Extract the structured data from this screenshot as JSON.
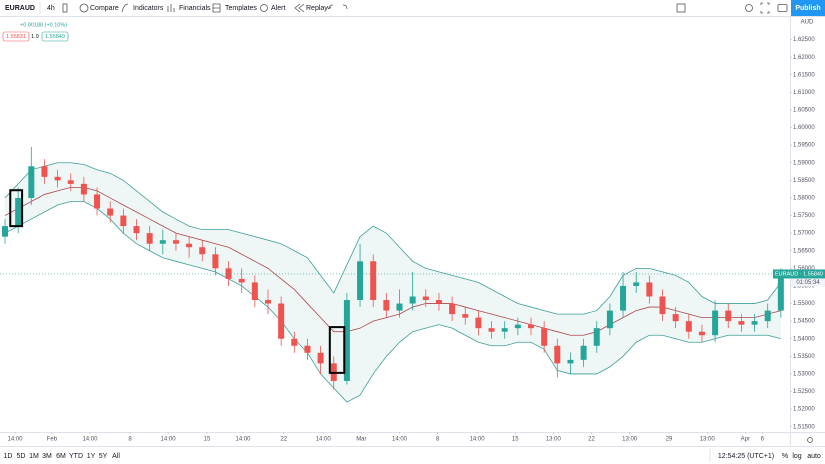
{
  "toolbar": {
    "symbol": "EURAUD",
    "interval": "4h",
    "items": [
      "Compare",
      "Indicators",
      "Financials",
      "Templates",
      "Alert",
      "Replay"
    ],
    "publish": "Publish"
  },
  "legend": {
    "change": "+0.00188 (+0.10%)",
    "bid": "1.55831",
    "spread": "1.9",
    "ask": "1.55849"
  },
  "chart_data": {
    "type": "candlestick",
    "currency": "AUD",
    "open": [
      1.569,
      1.572,
      1.58,
      1.589,
      1.586,
      1.585,
      1.584,
      1.581,
      1.577,
      1.575,
      1.572,
      1.57,
      1.567,
      1.568,
      1.567,
      1.566,
      1.564,
      1.56,
      1.557,
      1.556,
      1.551,
      1.55,
      1.54,
      1.538,
      1.536,
      1.533,
      1.528,
      1.551,
      1.562,
      1.551,
      1.548,
      1.55,
      1.552,
      1.551,
      1.55,
      1.547,
      1.546,
      1.543,
      1.542,
      1.543,
      1.544,
      1.543,
      1.538,
      1.533,
      1.534,
      1.538,
      1.543,
      1.548,
      1.555,
      1.556,
      1.552,
      1.547,
      1.545,
      1.542,
      1.541,
      1.548,
      1.545,
      1.544,
      1.545,
      1.548
    ],
    "high": [
      1.574,
      1.583,
      1.5945,
      1.591,
      1.588,
      1.587,
      1.586,
      1.583,
      1.579,
      1.577,
      1.574,
      1.572,
      1.571,
      1.57,
      1.569,
      1.568,
      1.566,
      1.562,
      1.56,
      1.558,
      1.554,
      1.552,
      1.542,
      1.54,
      1.538,
      1.535,
      1.553,
      1.567,
      1.564,
      1.553,
      1.554,
      1.559,
      1.554,
      1.553,
      1.552,
      1.549,
      1.548,
      1.545,
      1.545,
      1.546,
      1.546,
      1.545,
      1.54,
      1.536,
      1.54,
      1.545,
      1.55,
      1.559,
      1.559,
      1.558,
      1.554,
      1.549,
      1.547,
      1.544,
      1.551,
      1.55,
      1.547,
      1.547,
      1.55,
      1.56
    ],
    "low": [
      1.567,
      1.57,
      1.578,
      1.584,
      1.583,
      1.582,
      1.579,
      1.575,
      1.573,
      1.57,
      1.568,
      1.565,
      1.564,
      1.565,
      1.563,
      1.562,
      1.558,
      1.555,
      1.553,
      1.549,
      1.547,
      1.538,
      1.536,
      1.534,
      1.53,
      1.5255,
      1.527,
      1.549,
      1.549,
      1.546,
      1.546,
      1.548,
      1.549,
      1.548,
      1.545,
      1.544,
      1.541,
      1.54,
      1.54,
      1.541,
      1.541,
      1.536,
      1.529,
      1.53,
      1.532,
      1.536,
      1.541,
      1.546,
      1.553,
      1.55,
      1.545,
      1.543,
      1.54,
      1.539,
      1.539,
      1.543,
      1.542,
      1.542,
      1.543,
      1.546
    ],
    "close": [
      1.572,
      1.58,
      1.589,
      1.586,
      1.585,
      1.584,
      1.581,
      1.577,
      1.575,
      1.572,
      1.57,
      1.567,
      1.568,
      1.567,
      1.566,
      1.564,
      1.56,
      1.557,
      1.556,
      1.551,
      1.55,
      1.54,
      1.538,
      1.536,
      1.533,
      1.528,
      1.551,
      1.562,
      1.551,
      1.548,
      1.55,
      1.552,
      1.551,
      1.55,
      1.547,
      1.546,
      1.543,
      1.542,
      1.543,
      1.544,
      1.543,
      1.538,
      1.533,
      1.534,
      1.538,
      1.543,
      1.548,
      1.555,
      1.556,
      1.552,
      1.547,
      1.545,
      1.542,
      1.541,
      1.548,
      1.545,
      1.544,
      1.545,
      1.548,
      1.5584
    ],
    "up_color": "#26a69a",
    "down_color": "#ef5350",
    "bollinger": {
      "upper": [
        1.58,
        1.584,
        1.588,
        1.589,
        1.59,
        1.59,
        1.5895,
        1.588,
        1.587,
        1.585,
        1.582,
        1.579,
        1.576,
        1.574,
        1.572,
        1.571,
        1.571,
        1.571,
        1.57,
        1.569,
        1.568,
        1.567,
        1.565,
        1.563,
        1.558,
        1.553,
        1.561,
        1.569,
        1.572,
        1.57,
        1.566,
        1.562,
        1.56,
        1.559,
        1.558,
        1.557,
        1.556,
        1.554,
        1.552,
        1.55,
        1.549,
        1.548,
        1.547,
        1.547,
        1.547,
        1.548,
        1.552,
        1.558,
        1.56,
        1.56,
        1.559,
        1.558,
        1.556,
        1.552,
        1.55,
        1.55,
        1.55,
        1.55,
        1.551,
        1.556
      ],
      "middle": [
        1.575,
        1.577,
        1.579,
        1.581,
        1.582,
        1.583,
        1.583,
        1.582,
        1.58,
        1.578,
        1.576,
        1.574,
        1.572,
        1.57,
        1.569,
        1.568,
        1.567,
        1.566,
        1.564,
        1.562,
        1.56,
        1.557,
        1.554,
        1.55,
        1.546,
        1.542,
        1.542,
        1.543,
        1.545,
        1.546,
        1.547,
        1.549,
        1.55,
        1.55,
        1.55,
        1.549,
        1.548,
        1.547,
        1.546,
        1.545,
        1.544,
        1.543,
        1.542,
        1.541,
        1.541,
        1.542,
        1.544,
        1.546,
        1.548,
        1.549,
        1.549,
        1.548,
        1.547,
        1.546,
        1.546,
        1.546,
        1.546,
        1.546,
        1.547,
        1.548
      ],
      "lower": [
        1.57,
        1.572,
        1.574,
        1.576,
        1.578,
        1.579,
        1.579,
        1.577,
        1.574,
        1.57,
        1.567,
        1.565,
        1.563,
        1.562,
        1.561,
        1.56,
        1.559,
        1.557,
        1.555,
        1.552,
        1.549,
        1.545,
        1.54,
        1.536,
        1.53,
        1.526,
        1.522,
        1.524,
        1.53,
        1.535,
        1.539,
        1.542,
        1.543,
        1.544,
        1.543,
        1.541,
        1.539,
        1.538,
        1.538,
        1.539,
        1.539,
        1.537,
        1.531,
        1.53,
        1.53,
        1.53,
        1.532,
        1.535,
        1.539,
        1.541,
        1.541,
        1.54,
        1.539,
        1.539,
        1.54,
        1.541,
        1.541,
        1.541,
        1.541,
        1.54
      ],
      "band_color": "#3f9e9a",
      "basis_color": "#b0464b",
      "fill": "#eef7f6"
    },
    "highlight_boxes": [
      {
        "x": [
          0.4,
          1.3
        ],
        "y": [
          1.572,
          1.5822
        ]
      },
      {
        "x": [
          24.7,
          25.8
        ],
        "y": [
          1.5303,
          1.5433
        ]
      }
    ],
    "last_price": 1.5584,
    "last_price_label": "EURAUD · 1.55840",
    "countdown": "01:05:34",
    "ylim": [
      1.5135,
      1.6317
    ],
    "yticks": [
      {
        "value": 1.515,
        "label": "1.51500"
      },
      {
        "value": 1.52,
        "label": "1.52000"
      },
      {
        "value": 1.525,
        "label": "1.52500"
      },
      {
        "value": 1.53,
        "label": "1.53000"
      },
      {
        "value": 1.535,
        "label": "1.53500"
      },
      {
        "value": 1.54,
        "label": "1.54000"
      },
      {
        "value": 1.545,
        "label": "1.54500"
      },
      {
        "value": 1.55,
        "label": "1.55000"
      },
      {
        "value": 1.555,
        "label": "1.55500"
      },
      {
        "value": 1.56,
        "label": "1.56000"
      },
      {
        "value": 1.565,
        "label": "1.56500"
      },
      {
        "value": 1.57,
        "label": "1.57000"
      },
      {
        "value": 1.575,
        "label": "1.57500"
      },
      {
        "value": 1.58,
        "label": "1.58000"
      },
      {
        "value": 1.585,
        "label": "1.58500"
      },
      {
        "value": 1.59,
        "label": "1.59000"
      },
      {
        "value": 1.595,
        "label": "1.59500"
      },
      {
        "value": 1.6,
        "label": "1.60000"
      },
      {
        "value": 1.605,
        "label": "1.60500"
      },
      {
        "value": 1.61,
        "label": "1.61000"
      },
      {
        "value": 1.615,
        "label": "1.61500"
      },
      {
        "value": 1.62,
        "label": "1.62000"
      },
      {
        "value": 1.625,
        "label": "1.62500"
      }
    ],
    "xticks": [
      {
        "value": 0.76,
        "label": "14:00"
      },
      {
        "value": 3.57,
        "label": "Feb"
      },
      {
        "value": 6.46,
        "label": "14:00"
      },
      {
        "value": 9.51,
        "label": "8"
      },
      {
        "value": 12.4,
        "label": "14:00"
      },
      {
        "value": 15.36,
        "label": "15"
      },
      {
        "value": 18.1,
        "label": "14:00"
      },
      {
        "value": 21.2,
        "label": "22"
      },
      {
        "value": 24.2,
        "label": "14:00"
      },
      {
        "value": 27.1,
        "label": "Mar"
      },
      {
        "value": 30.0,
        "label": "14:00"
      },
      {
        "value": 32.9,
        "label": "8"
      },
      {
        "value": 35.9,
        "label": "14:00"
      },
      {
        "value": 38.8,
        "label": "15"
      },
      {
        "value": 41.7,
        "label": "13:00"
      },
      {
        "value": 44.6,
        "label": "22"
      },
      {
        "value": 47.5,
        "label": "13:00"
      },
      {
        "value": 50.5,
        "label": "29"
      },
      {
        "value": 53.4,
        "label": "13:00"
      },
      {
        "value": 56.3,
        "label": "Apr"
      },
      {
        "value": 57.6,
        "label": "6"
      }
    ],
    "grid": false
  },
  "bottom_bar": {
    "ranges": [
      "1D",
      "5D",
      "1M",
      "3M",
      "6M",
      "YTD",
      "1Y",
      "5Y",
      "All"
    ],
    "clock": "12:54:25 (UTC+1)",
    "percent": "%",
    "log": "log",
    "auto": "auto"
  }
}
